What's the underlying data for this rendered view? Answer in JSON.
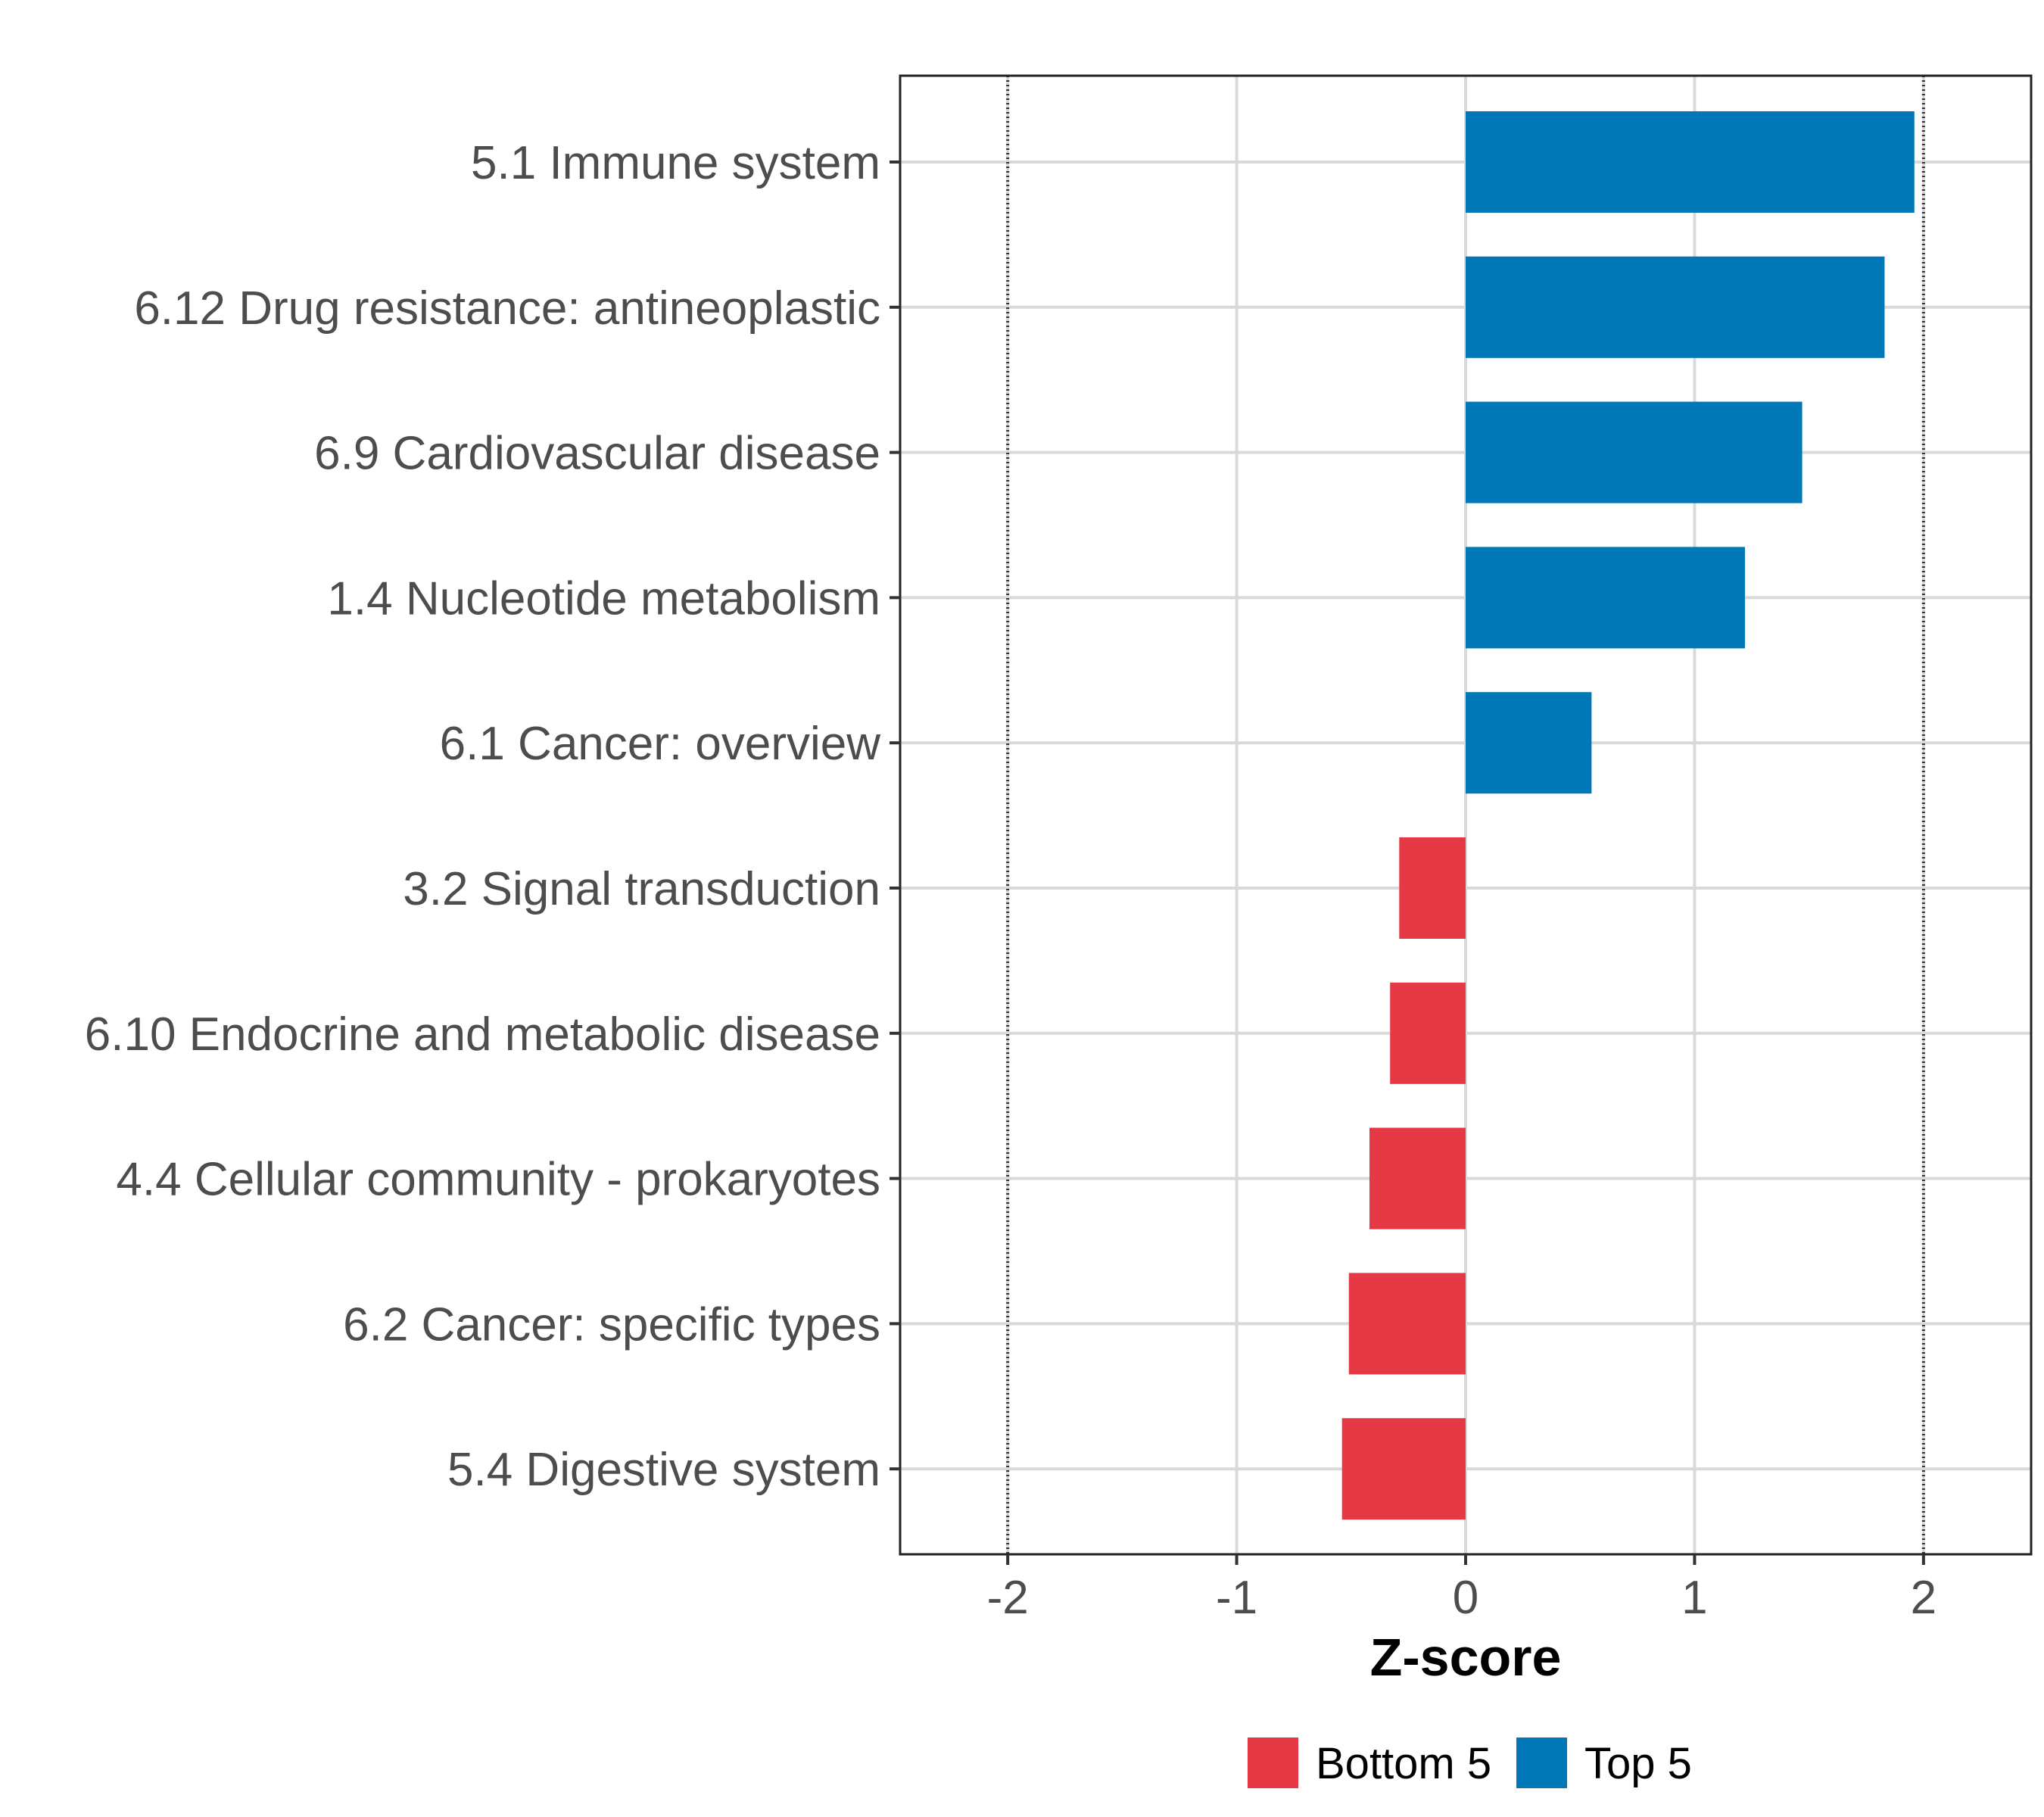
{
  "chart_data": {
    "type": "bar",
    "orientation": "horizontal",
    "xlabel": "Z-score",
    "ylabel": "",
    "title": "",
    "xlim": [
      -2.47,
      2.47
    ],
    "xticks": [
      -2,
      -1,
      0,
      1,
      2
    ],
    "xtick_labels": [
      "-2",
      "-1",
      "0",
      "1",
      "2"
    ],
    "reference_lines": [
      -2,
      2
    ],
    "grid": true,
    "legend_position": "bottom",
    "categories": [
      "5.1 Immune system",
      "6.12 Drug resistance: antineoplastic",
      "6.9 Cardiovascular disease",
      "1.4 Nucleotide metabolism",
      "6.1 Cancer: overview",
      "3.2 Signal transduction",
      "6.10 Endocrine and metabolic disease",
      "4.4 Cellular community - prokaryotes",
      "6.2 Cancer: specific types",
      "5.4 Digestive system"
    ],
    "values": [
      1.96,
      1.83,
      1.47,
      1.22,
      0.55,
      -0.29,
      -0.33,
      -0.42,
      -0.51,
      -0.54
    ],
    "groups": [
      "Top 5",
      "Top 5",
      "Top 5",
      "Top 5",
      "Top 5",
      "Bottom 5",
      "Bottom 5",
      "Bottom 5",
      "Bottom 5",
      "Bottom 5"
    ],
    "legend": [
      {
        "name": "Bottom 5",
        "color": "#E63946"
      },
      {
        "name": "Top 5",
        "color": "#0077B6"
      }
    ]
  }
}
